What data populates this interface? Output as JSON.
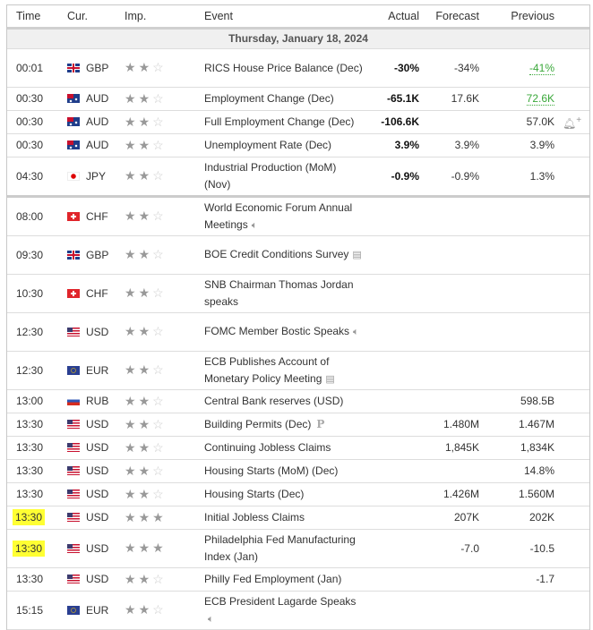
{
  "header": {
    "time": "Time",
    "cur": "Cur.",
    "imp": "Imp.",
    "event": "Event",
    "actual": "Actual",
    "forecast": "Forecast",
    "previous": "Previous"
  },
  "date": "Thursday, January 18, 2024",
  "rows": [
    {
      "time": "00:01",
      "cur": "GBP",
      "stars": 2,
      "event": "RICS House Price Balance (Dec)",
      "actual": "-30%",
      "actual_color": "green",
      "forecast": "-34%",
      "previous": "-41%",
      "prev_revised": true,
      "lines": 2
    },
    {
      "time": "00:30",
      "cur": "AUD",
      "stars": 2,
      "event": "Employment Change (Dec)",
      "actual": "-65.1K",
      "actual_color": "red",
      "forecast": "17.6K",
      "previous": "72.6K",
      "prev_revised": true
    },
    {
      "time": "00:30",
      "cur": "AUD",
      "stars": 2,
      "event": "Full Employment Change (Dec)",
      "actual": "-106.6K",
      "actual_color": "black",
      "forecast": "",
      "previous": "57.0K",
      "bell": true
    },
    {
      "time": "00:30",
      "cur": "AUD",
      "stars": 2,
      "event": "Unemployment Rate (Dec)",
      "actual": "3.9%",
      "actual_color": "black",
      "forecast": "3.9%",
      "previous": "3.9%"
    },
    {
      "time": "04:30",
      "cur": "JPY",
      "stars": 2,
      "event": "Industrial Production (MoM) (Nov)",
      "actual": "-0.9%",
      "actual_color": "black",
      "forecast": "-0.9%",
      "previous": "1.3%",
      "lines": 2,
      "thick": true
    },
    {
      "time": "08:00",
      "cur": "CHF",
      "stars": 2,
      "event": "World Economic Forum Annual Meetings",
      "icon": "speaker",
      "lines": 2
    },
    {
      "time": "09:30",
      "cur": "GBP",
      "stars": 2,
      "event": "BOE Credit Conditions Survey",
      "icon": "document",
      "lines": 2
    },
    {
      "time": "10:30",
      "cur": "CHF",
      "stars": 2,
      "event": "SNB Chairman Thomas Jordan speaks",
      "lines": 2
    },
    {
      "time": "12:30",
      "cur": "USD",
      "stars": 2,
      "event": "FOMC Member Bostic Speaks",
      "icon": "speaker",
      "lines": 2
    },
    {
      "time": "12:30",
      "cur": "EUR",
      "stars": 2,
      "event": "ECB Publishes Account of Monetary Policy Meeting",
      "icon": "document",
      "lines": 2
    },
    {
      "time": "13:00",
      "cur": "RUB",
      "stars": 2,
      "event": "Central Bank reserves (USD)",
      "previous": "598.5B"
    },
    {
      "time": "13:30",
      "cur": "USD",
      "stars": 2,
      "event": "Building Permits (Dec)",
      "icon": "preliminary",
      "forecast": "1.480M",
      "previous": "1.467M"
    },
    {
      "time": "13:30",
      "cur": "USD",
      "stars": 2,
      "event": "Continuing Jobless Claims",
      "forecast": "1,845K",
      "previous": "1,834K"
    },
    {
      "time": "13:30",
      "cur": "USD",
      "stars": 2,
      "event": "Housing Starts (MoM) (Dec)",
      "previous": "14.8%"
    },
    {
      "time": "13:30",
      "cur": "USD",
      "stars": 2,
      "event": "Housing Starts (Dec)",
      "forecast": "1.426M",
      "previous": "1.560M"
    },
    {
      "time": "13:30",
      "cur": "USD",
      "stars": 3,
      "event": "Initial Jobless Claims",
      "forecast": "207K",
      "previous": "202K",
      "highlight": true
    },
    {
      "time": "13:30",
      "cur": "USD",
      "stars": 3,
      "event": "Philadelphia Fed Manufacturing Index (Jan)",
      "forecast": "-7.0",
      "previous": "-10.5",
      "highlight": true,
      "lines": 2
    },
    {
      "time": "13:30",
      "cur": "USD",
      "stars": 2,
      "event": "Philly Fed Employment (Jan)",
      "previous": "-1.7"
    },
    {
      "time": "15:15",
      "cur": "EUR",
      "stars": 2,
      "event": "ECB President Lagarde Speaks",
      "icon": "speaker",
      "lines": 2
    }
  ]
}
